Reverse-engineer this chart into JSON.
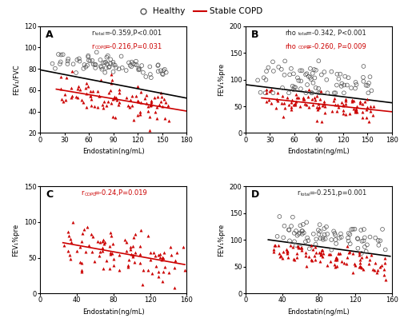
{
  "title_A_label": "A",
  "title_B_label": "B",
  "title_C_label": "C",
  "title_D_label": "D",
  "xlabel": "Endostatin(ng/mL)",
  "ylabel_A": "FEV₁/FVC",
  "ylabel_BCD": "FEV₁%pre",
  "legend_healthy": "Healthy",
  "legend_copd": "Stable COPD",
  "healthy_color": "#555555",
  "copd_color": "#cc0000",
  "black_line_color": "#000000",
  "red_line_color": "#cc0000",
  "A_ylim": [
    20,
    120
  ],
  "A_yticks": [
    20,
    40,
    60,
    80,
    100,
    120
  ],
  "A_xlim": [
    0,
    180
  ],
  "A_xticks": [
    0,
    30,
    60,
    90,
    120,
    150,
    180
  ],
  "B_ylim": [
    0,
    200
  ],
  "B_yticks": [
    0,
    50,
    100,
    150,
    200
  ],
  "B_xlim": [
    0,
    180
  ],
  "B_xticks": [
    0,
    30,
    60,
    90,
    120,
    150,
    180
  ],
  "C_ylim": [
    0,
    150
  ],
  "C_yticks": [
    0,
    50,
    100,
    150
  ],
  "C_xlim": [
    0,
    160
  ],
  "C_xticks": [
    0,
    40,
    80,
    120,
    160
  ],
  "D_ylim": [
    0,
    200
  ],
  "D_yticks": [
    0,
    50,
    100,
    150,
    200
  ],
  "D_xlim": [
    0,
    160
  ],
  "D_xticks": [
    0,
    40,
    80,
    120,
    160
  ],
  "seed": 7
}
